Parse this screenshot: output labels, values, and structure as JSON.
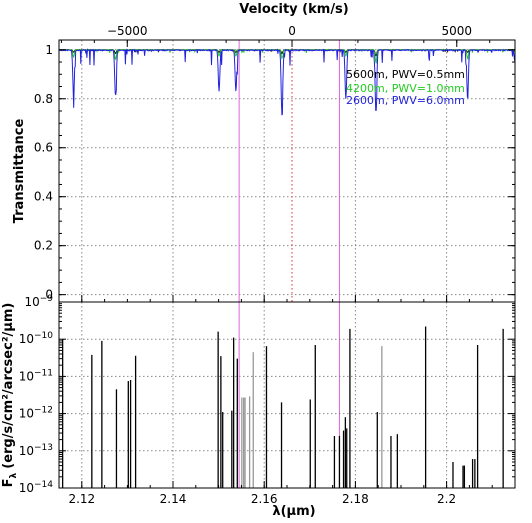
{
  "chart_data": [
    {
      "type": "line",
      "panel": "top",
      "title": "",
      "xlabel": "",
      "ylabel": "Transmittance",
      "top_axis": {
        "label": "Velocity (km/s)",
        "ticks": [
          -5000,
          0,
          5000
        ],
        "tick_labels": [
          "−5000",
          "0",
          "5000"
        ]
      },
      "xlim": [
        2.115,
        2.215
      ],
      "ylim": [
        -0.03,
        1.04
      ],
      "y_ticks": [
        0,
        0.2,
        0.4,
        0.6,
        0.8,
        1
      ],
      "y_tick_labels": [
        "0",
        "0.2",
        "0.4",
        "0.6",
        "0.8",
        "1"
      ],
      "grid": true,
      "legend_position": "top-right",
      "reference_lines": {
        "magenta": [
          2.1545,
          2.1765
        ],
        "red": [
          2.1661
        ]
      },
      "series": [
        {
          "name": "5600m, PWV=0.5mm",
          "color": "#000000",
          "x": [
            2.115,
            2.1182,
            2.1274,
            2.1501,
            2.1538,
            2.1639,
            2.1779,
            2.1845,
            2.2046,
            2.215
          ],
          "y": [
            1.0,
            0.99,
            0.985,
            0.99,
            0.99,
            0.985,
            0.99,
            0.975,
            0.99,
            1.0
          ]
        },
        {
          "name": "4200m, PWV=1.0mm",
          "color": "#22cc22",
          "x": [
            2.115,
            2.1182,
            2.1274,
            2.1501,
            2.1538,
            2.1639,
            2.1779,
            2.1845,
            2.2046,
            2.215
          ],
          "y": [
            1.0,
            0.97,
            0.96,
            0.975,
            0.975,
            0.965,
            0.975,
            0.95,
            0.965,
            0.99
          ]
        },
        {
          "name": "2600m, PWV=6.0mm",
          "color": "#2222dd",
          "x": [
            2.115,
            2.1182,
            2.1274,
            2.1501,
            2.1538,
            2.1639,
            2.1779,
            2.1845,
            2.2046,
            2.215
          ],
          "y": [
            1.0,
            0.81,
            0.81,
            0.83,
            0.83,
            0.735,
            0.8,
            0.74,
            0.8,
            0.95
          ]
        }
      ]
    },
    {
      "type": "bar",
      "panel": "bottom",
      "title": "",
      "xlabel": "λ(μm)",
      "ylabel": "Fλ (erg/s/cm²/arcsec²/μm)",
      "ylabel_parts": {
        "F": "F",
        "lambda": "λ",
        "units": "(erg/s/cm²/arcsec²/μm)"
      },
      "scale": "log",
      "xlim": [
        2.115,
        2.215
      ],
      "ylim": [
        1e-14,
        1e-09
      ],
      "x_ticks": [
        2.12,
        2.14,
        2.16,
        2.18,
        2.2
      ],
      "x_tick_labels": [
        "2.12",
        "2.14",
        "2.16",
        "2.18",
        "2.2"
      ],
      "y_ticks": [
        1e-14,
        1e-13,
        1e-12,
        1e-11,
        1e-10,
        1e-09
      ],
      "y_tick_labels": [
        {
          "base": "10",
          "exp": "−14"
        },
        {
          "base": "10",
          "exp": "−13"
        },
        {
          "base": "10",
          "exp": "−12"
        },
        {
          "base": "10",
          "exp": "−11"
        },
        {
          "base": "10",
          "exp": "−10"
        },
        {
          "base": "10",
          "exp": "−9"
        }
      ],
      "grid": true,
      "lines": [
        {
          "x": 2.1158,
          "y": 1e-10,
          "color": "black"
        },
        {
          "x": 2.1222,
          "y": 3.8e-11,
          "color": "black"
        },
        {
          "x": 2.1244,
          "y": 9e-11,
          "color": "black"
        },
        {
          "x": 2.1276,
          "y": 4.5e-12,
          "color": "black"
        },
        {
          "x": 2.1302,
          "y": 7.5e-12,
          "color": "black"
        },
        {
          "x": 2.1307,
          "y": 8e-12,
          "color": "black"
        },
        {
          "x": 2.1318,
          "y": 3.6e-11,
          "color": "black"
        },
        {
          "x": 2.1499,
          "y": 1.6e-10,
          "color": "black"
        },
        {
          "x": 2.1505,
          "y": 3.5e-11,
          "color": "black"
        },
        {
          "x": 2.1509,
          "y": 1.1e-12,
          "color": "black"
        },
        {
          "x": 2.1529,
          "y": 1.2e-12,
          "color": "black"
        },
        {
          "x": 2.1533,
          "y": 1.1e-10,
          "color": "black"
        },
        {
          "x": 2.1541,
          "y": 3e-11,
          "color": "black"
        },
        {
          "x": 2.1551,
          "y": 2.7e-12,
          "color": "gray"
        },
        {
          "x": 2.1555,
          "y": 2.7e-12,
          "color": "gray"
        },
        {
          "x": 2.1558,
          "y": 2.7e-12,
          "color": "gray"
        },
        {
          "x": 2.1568,
          "y": 2.9e-12,
          "color": "gray"
        },
        {
          "x": 2.1576,
          "y": 4.5e-11,
          "color": "gray"
        },
        {
          "x": 2.1605,
          "y": 6.5e-11,
          "color": "black"
        },
        {
          "x": 2.1638,
          "y": 2e-12,
          "color": "black"
        },
        {
          "x": 2.1701,
          "y": 2.4e-12,
          "color": "black"
        },
        {
          "x": 2.1712,
          "y": 7e-11,
          "color": "black"
        },
        {
          "x": 2.1754,
          "y": 2.5e-13,
          "color": "black"
        },
        {
          "x": 2.1765,
          "y": 2.5e-13,
          "color": "black"
        },
        {
          "x": 2.1774,
          "y": 3.5e-13,
          "color": "black"
        },
        {
          "x": 2.1778,
          "y": 8e-13,
          "color": "black"
        },
        {
          "x": 2.1781,
          "y": 4e-13,
          "color": "black"
        },
        {
          "x": 2.1788,
          "y": 1.9e-10,
          "color": "black"
        },
        {
          "x": 2.1848,
          "y": 1.1e-12,
          "color": "black"
        },
        {
          "x": 2.1858,
          "y": 6.5e-11,
          "color": "gray"
        },
        {
          "x": 2.1878,
          "y": 2.5e-13,
          "color": "black"
        },
        {
          "x": 2.1892,
          "y": 2.8e-13,
          "color": "black"
        },
        {
          "x": 2.1954,
          "y": 2.2e-10,
          "color": "black"
        },
        {
          "x": 2.2014,
          "y": 5e-14,
          "color": "black"
        },
        {
          "x": 2.2036,
          "y": 4e-14,
          "color": "black"
        },
        {
          "x": 2.2039,
          "y": 4e-14,
          "color": "black"
        },
        {
          "x": 2.2057,
          "y": 6e-14,
          "color": "black"
        },
        {
          "x": 2.2062,
          "y": 6e-14,
          "color": "black"
        },
        {
          "x": 2.2068,
          "y": 7e-11,
          "color": "black"
        },
        {
          "x": 2.2124,
          "y": 1.9e-10,
          "color": "black"
        }
      ]
    }
  ]
}
